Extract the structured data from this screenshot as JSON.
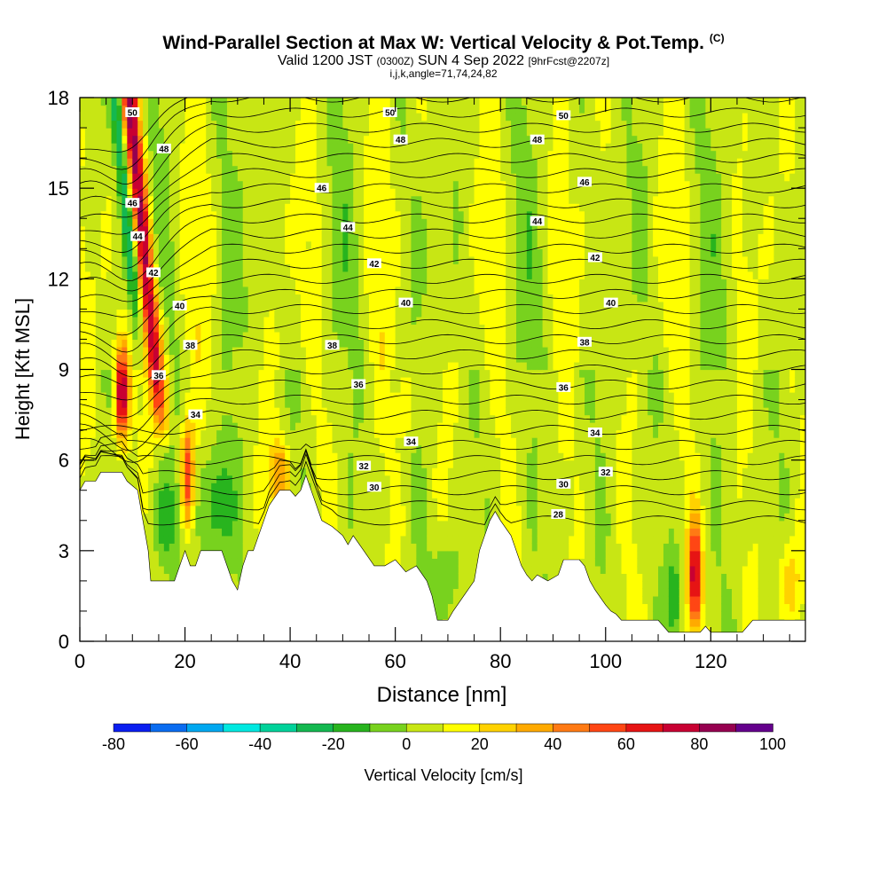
{
  "title": {
    "main": "Wind-Parallel Section at Max W: Vertical Velocity & Pot.Temp.",
    "copyright": "(C)",
    "valid_prefix": "Valid 1200 JST",
    "valid_utc": "(0300Z)",
    "valid_date": "SUN 4 Sep 2022",
    "forecast": "[9hrFcst@2207z]",
    "params": "i,j,k,angle=71,74,24,82"
  },
  "chart_data": {
    "type": "heatmap",
    "xlabel": "Distance [nm]",
    "ylabel": "Height [Kft MSL]",
    "xlim": [
      0,
      138
    ],
    "ylim": [
      0,
      18
    ],
    "x_ticks": [
      0,
      20,
      40,
      60,
      80,
      100,
      120
    ],
    "y_ticks": [
      0,
      3,
      6,
      9,
      12,
      15,
      18
    ],
    "x_tick_labels": [
      "0",
      "20",
      "40",
      "60",
      "80",
      "100",
      "120"
    ],
    "y_tick_labels": [
      "0",
      "3",
      "6",
      "9",
      "12",
      "15",
      "18"
    ],
    "colorbar": {
      "label": "Vertical Velocity [cm/s]",
      "levels": [
        -80,
        -70,
        -60,
        -50,
        -40,
        -30,
        -20,
        -10,
        0,
        10,
        20,
        30,
        40,
        50,
        60,
        70,
        80,
        90,
        100
      ],
      "tick_labels": [
        "-80",
        "-60",
        "-40",
        "-20",
        "0",
        "20",
        "40",
        "60",
        "80",
        "100"
      ],
      "colors": [
        "#0a1ef0",
        "#0a6cf0",
        "#00a8f0",
        "#00e8e0",
        "#00d29a",
        "#14b850",
        "#28b41e",
        "#78d21e",
        "#c8e614",
        "#ffff00",
        "#ffd200",
        "#ffaa00",
        "#ff7a14",
        "#ff4614",
        "#e61414",
        "#c80032",
        "#960050",
        "#64008c"
      ]
    },
    "terrain_kft": [
      [
        0,
        5
      ],
      [
        1,
        5.3
      ],
      [
        3,
        5.3
      ],
      [
        4,
        5.6
      ],
      [
        8,
        5.6
      ],
      [
        9,
        5.3
      ],
      [
        11,
        5
      ],
      [
        12,
        4
      ],
      [
        13,
        3
      ],
      [
        13.5,
        2
      ],
      [
        18,
        2
      ],
      [
        19,
        2.5
      ],
      [
        20,
        3
      ],
      [
        21,
        2.5
      ],
      [
        22,
        2.5
      ],
      [
        23,
        3
      ],
      [
        27,
        3
      ],
      [
        29,
        2
      ],
      [
        30,
        1.7
      ],
      [
        31,
        2.5
      ],
      [
        32,
        3
      ],
      [
        33,
        3
      ],
      [
        34,
        3.5
      ],
      [
        36,
        4.5
      ],
      [
        38,
        5
      ],
      [
        40,
        5
      ],
      [
        41,
        4.8
      ],
      [
        42,
        5
      ],
      [
        43,
        5.5
      ],
      [
        44,
        5
      ],
      [
        46,
        4
      ],
      [
        48,
        3.8
      ],
      [
        50,
        3.5
      ],
      [
        51,
        3.2
      ],
      [
        52,
        3.5
      ],
      [
        54,
        3
      ],
      [
        56,
        2.5
      ],
      [
        58,
        2.5
      ],
      [
        60,
        2.7
      ],
      [
        62,
        2.3
      ],
      [
        64,
        2.5
      ],
      [
        66,
        2
      ],
      [
        67,
        1.5
      ],
      [
        68,
        0.7
      ],
      [
        70,
        0.7
      ],
      [
        71,
        1
      ],
      [
        73,
        1.5
      ],
      [
        75,
        2
      ],
      [
        76,
        3
      ],
      [
        77,
        3.5
      ],
      [
        78,
        4
      ],
      [
        79,
        4.3
      ],
      [
        80,
        4
      ],
      [
        82,
        3.5
      ],
      [
        83,
        3
      ],
      [
        84,
        2.5
      ],
      [
        85,
        2.2
      ],
      [
        86,
        2
      ],
      [
        87,
        2.2
      ],
      [
        89,
        2
      ],
      [
        91,
        2.2
      ],
      [
        92,
        2.7
      ],
      [
        95,
        2.7
      ],
      [
        96,
        2.5
      ],
      [
        97,
        2
      ],
      [
        98,
        1.7
      ],
      [
        100,
        1.2
      ],
      [
        101,
        1
      ],
      [
        102,
        0.9
      ],
      [
        103,
        0.7
      ],
      [
        110,
        0.7
      ],
      [
        111,
        0.5
      ],
      [
        112,
        0.3
      ],
      [
        118,
        0.3
      ],
      [
        119,
        0.5
      ],
      [
        120,
        0.3
      ],
      [
        126,
        0.3
      ],
      [
        127,
        0.5
      ],
      [
        128,
        0.7
      ],
      [
        138,
        0.7
      ]
    ],
    "contour_labels": [
      {
        "label": "50",
        "x": 10,
        "y": 17.5
      },
      {
        "label": "50",
        "x": 59,
        "y": 17.5
      },
      {
        "label": "50",
        "x": 92,
        "y": 17.4
      },
      {
        "label": "48",
        "x": 16,
        "y": 16.3
      },
      {
        "label": "48",
        "x": 61,
        "y": 16.6
      },
      {
        "label": "48",
        "x": 87,
        "y": 16.6
      },
      {
        "label": "46",
        "x": 10,
        "y": 14.5
      },
      {
        "label": "46",
        "x": 46,
        "y": 15.0
      },
      {
        "label": "46",
        "x": 96,
        "y": 15.2
      },
      {
        "label": "44",
        "x": 11,
        "y": 13.4
      },
      {
        "label": "44",
        "x": 51,
        "y": 13.7
      },
      {
        "label": "44",
        "x": 87,
        "y": 13.9
      },
      {
        "label": "42",
        "x": 14,
        "y": 12.2
      },
      {
        "label": "42",
        "x": 56,
        "y": 12.5
      },
      {
        "label": "42",
        "x": 98,
        "y": 12.7
      },
      {
        "label": "40",
        "x": 19,
        "y": 11.1
      },
      {
        "label": "40",
        "x": 62,
        "y": 11.2
      },
      {
        "label": "40",
        "x": 101,
        "y": 11.2
      },
      {
        "label": "38",
        "x": 21,
        "y": 9.8
      },
      {
        "label": "38",
        "x": 48,
        "y": 9.8
      },
      {
        "label": "38",
        "x": 96,
        "y": 9.9
      },
      {
        "label": "36",
        "x": 15,
        "y": 8.8
      },
      {
        "label": "36",
        "x": 53,
        "y": 8.5
      },
      {
        "label": "36",
        "x": 92,
        "y": 8.4
      },
      {
        "label": "34",
        "x": 22,
        "y": 7.5
      },
      {
        "label": "34",
        "x": 63,
        "y": 6.6
      },
      {
        "label": "34",
        "x": 98,
        "y": 6.9
      },
      {
        "label": "32",
        "x": 54,
        "y": 5.8
      },
      {
        "label": "32",
        "x": 100,
        "y": 5.6
      },
      {
        "label": "30",
        "x": 56,
        "y": 5.1
      },
      {
        "label": "30",
        "x": 92,
        "y": 5.2
      },
      {
        "label": "28",
        "x": 91,
        "y": 4.2
      }
    ]
  }
}
